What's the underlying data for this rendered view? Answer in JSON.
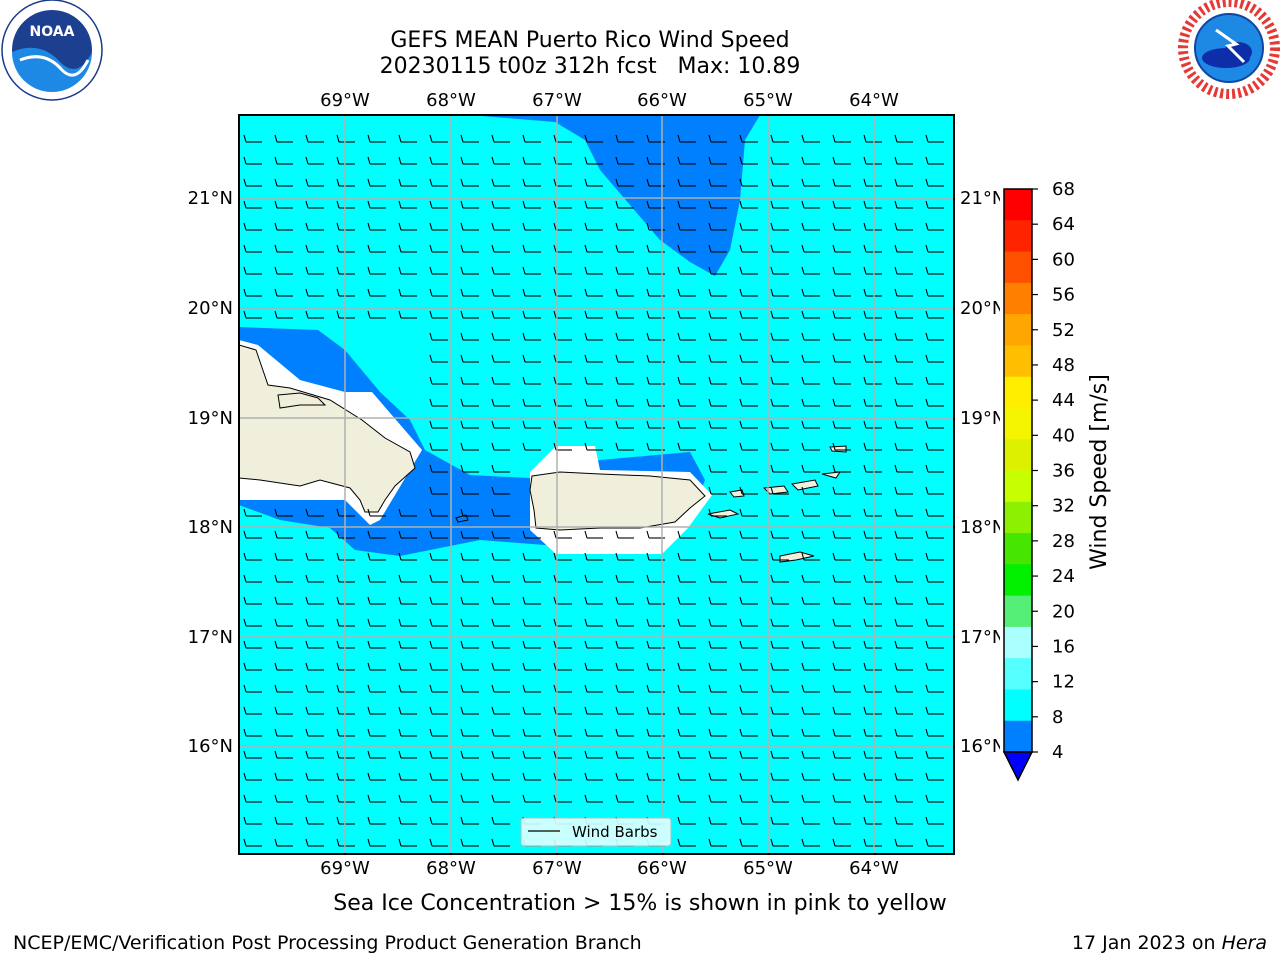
{
  "header": {
    "title_line1": "GEFS MEAN Puerto Rico Wind Speed",
    "title_line2": "20230115 t00z 312h fcst   Max: 10.89"
  },
  "logos": {
    "left": {
      "name": "noaa-logo",
      "text": "NOAA"
    },
    "right": {
      "name": "nws-logo"
    }
  },
  "map": {
    "lon_ticks": [
      "69°W",
      "68°W",
      "67°W",
      "66°W",
      "65°W",
      "64°W"
    ],
    "lat_ticks": [
      "21°N",
      "20°N",
      "19°N",
      "18°N",
      "17°N",
      "16°N"
    ],
    "legend_label": "Wind Barbs",
    "colors": {
      "water_8_12": "#00ffff",
      "band_4_8": "#0080ff",
      "land": "#efefdc",
      "grid": "#b0b0b0"
    }
  },
  "colorbar": {
    "label": "Wind Speed [m/s]",
    "ticks": [
      "68",
      "64",
      "60",
      "56",
      "52",
      "48",
      "44",
      "40",
      "36",
      "32",
      "28",
      "24",
      "20",
      "16",
      "12",
      "8",
      "4"
    ],
    "colors_top_to_bottom": [
      "#ff0000",
      "#ff2400",
      "#ff5000",
      "#ff7f00",
      "#ffa600",
      "#ffbf00",
      "#ffee00",
      "#f5f500",
      "#ddf000",
      "#c8ff00",
      "#8cf000",
      "#46e600",
      "#00f000",
      "#55ee77",
      "#aaffff",
      "#55ffff",
      "#00ffff",
      "#0080ff"
    ],
    "extend_color": "#0000ff"
  },
  "caption": "Sea Ice Concentration > 15% is shown in pink to yellow",
  "footer": {
    "left": "NCEP/EMC/Verification Post Processing Product Generation Branch",
    "right_prefix": "17 Jan 2023 on ",
    "right_host": "Hera"
  }
}
